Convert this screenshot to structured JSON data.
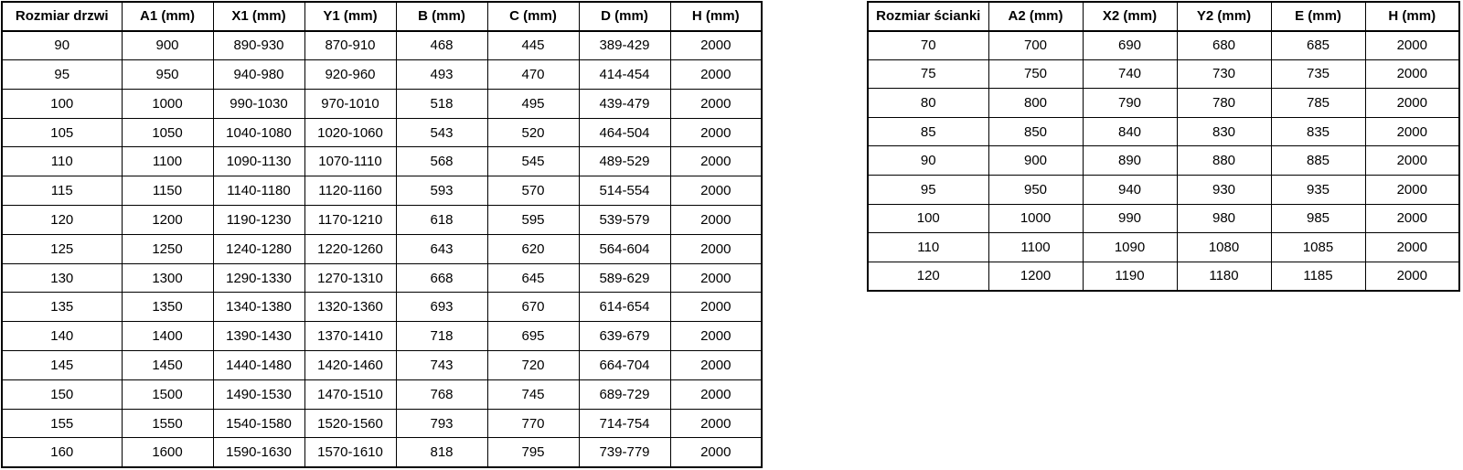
{
  "tables": [
    {
      "name": "door-sizes",
      "headers": [
        "Rozmiar drzwi",
        "A1 (mm)",
        "X1 (mm)",
        "Y1 (mm)",
        "B (mm)",
        "C (mm)",
        "D (mm)",
        "H (mm)"
      ],
      "rows": [
        [
          "90",
          "900",
          "890-930",
          "870-910",
          "468",
          "445",
          "389-429",
          "2000"
        ],
        [
          "95",
          "950",
          "940-980",
          "920-960",
          "493",
          "470",
          "414-454",
          "2000"
        ],
        [
          "100",
          "1000",
          "990-1030",
          "970-1010",
          "518",
          "495",
          "439-479",
          "2000"
        ],
        [
          "105",
          "1050",
          "1040-1080",
          "1020-1060",
          "543",
          "520",
          "464-504",
          "2000"
        ],
        [
          "110",
          "1100",
          "1090-1130",
          "1070-1110",
          "568",
          "545",
          "489-529",
          "2000"
        ],
        [
          "115",
          "1150",
          "1140-1180",
          "1120-1160",
          "593",
          "570",
          "514-554",
          "2000"
        ],
        [
          "120",
          "1200",
          "1190-1230",
          "1170-1210",
          "618",
          "595",
          "539-579",
          "2000"
        ],
        [
          "125",
          "1250",
          "1240-1280",
          "1220-1260",
          "643",
          "620",
          "564-604",
          "2000"
        ],
        [
          "130",
          "1300",
          "1290-1330",
          "1270-1310",
          "668",
          "645",
          "589-629",
          "2000"
        ],
        [
          "135",
          "1350",
          "1340-1380",
          "1320-1360",
          "693",
          "670",
          "614-654",
          "2000"
        ],
        [
          "140",
          "1400",
          "1390-1430",
          "1370-1410",
          "718",
          "695",
          "639-679",
          "2000"
        ],
        [
          "145",
          "1450",
          "1440-1480",
          "1420-1460",
          "743",
          "720",
          "664-704",
          "2000"
        ],
        [
          "150",
          "1500",
          "1490-1530",
          "1470-1510",
          "768",
          "745",
          "689-729",
          "2000"
        ],
        [
          "155",
          "1550",
          "1540-1580",
          "1520-1560",
          "793",
          "770",
          "714-754",
          "2000"
        ],
        [
          "160",
          "1600",
          "1590-1630",
          "1570-1610",
          "818",
          "795",
          "739-779",
          "2000"
        ]
      ]
    },
    {
      "name": "wall-sizes",
      "headers": [
        "Rozmiar ścianki",
        "A2 (mm)",
        "X2 (mm)",
        "Y2 (mm)",
        "E (mm)",
        "H (mm)"
      ],
      "rows": [
        [
          "70",
          "700",
          "690",
          "680",
          "685",
          "2000"
        ],
        [
          "75",
          "750",
          "740",
          "730",
          "735",
          "2000"
        ],
        [
          "80",
          "800",
          "790",
          "780",
          "785",
          "2000"
        ],
        [
          "85",
          "850",
          "840",
          "830",
          "835",
          "2000"
        ],
        [
          "90",
          "900",
          "890",
          "880",
          "885",
          "2000"
        ],
        [
          "95",
          "950",
          "940",
          "930",
          "935",
          "2000"
        ],
        [
          "100",
          "1000",
          "990",
          "980",
          "985",
          "2000"
        ],
        [
          "110",
          "1100",
          "1090",
          "1080",
          "1085",
          "2000"
        ],
        [
          "120",
          "1200",
          "1190",
          "1180",
          "1185",
          "2000"
        ]
      ]
    }
  ],
  "colors": {
    "border": "#000000",
    "text": "#000000",
    "background": "#ffffff"
  }
}
